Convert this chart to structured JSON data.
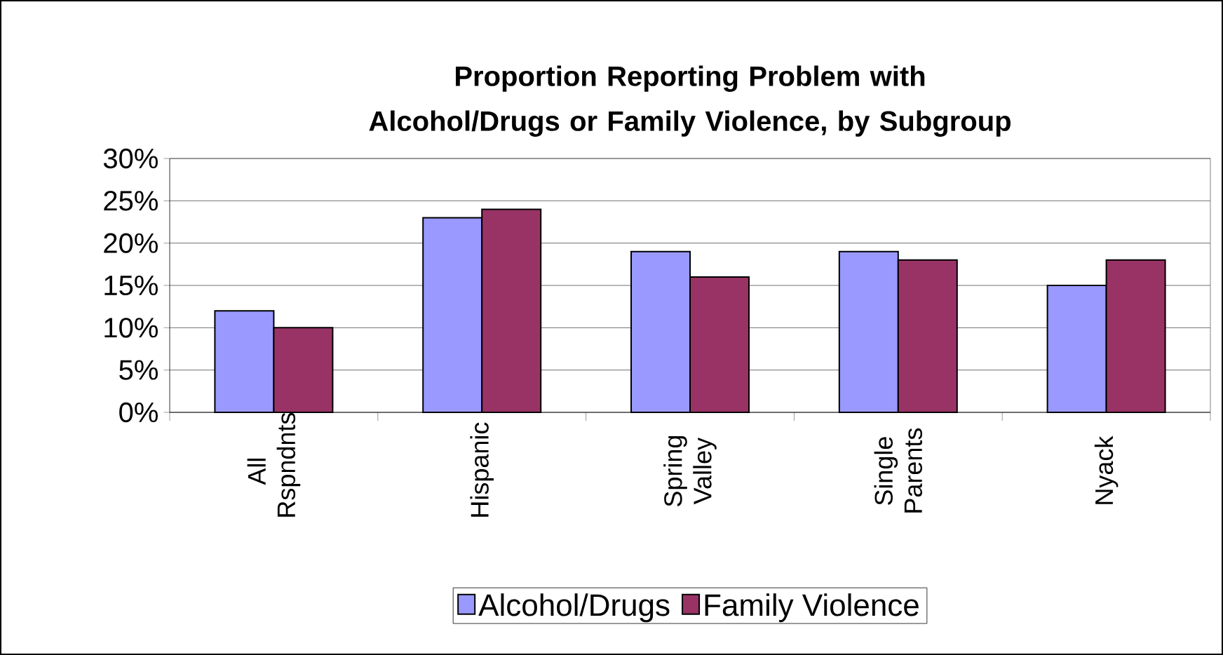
{
  "chart_data": {
    "type": "bar",
    "title": "Proportion Reporting Problem with Alcohol/Drugs or Family Violence, by Subgroup",
    "categories": [
      "All Rspndnts",
      "Hispanic",
      "Spring Valley",
      "Single Parents",
      "Nyack"
    ],
    "series": [
      {
        "name": "Alcohol/Drugs",
        "color": "#9999ff",
        "values": [
          12,
          23,
          19,
          19,
          15
        ]
      },
      {
        "name": "Family Violence",
        "color": "#993366",
        "values": [
          10,
          24,
          16,
          18,
          18
        ]
      }
    ],
    "ylim": [
      0,
      30
    ],
    "yticks": [
      {
        "value": 0,
        "label": "0%"
      },
      {
        "value": 5,
        "label": "5%"
      },
      {
        "value": 10,
        "label": "10%"
      },
      {
        "value": 15,
        "label": "15%"
      },
      {
        "value": 20,
        "label": "20%"
      },
      {
        "value": 25,
        "label": "25%"
      },
      {
        "value": 30,
        "label": "30%"
      }
    ],
    "grid": "y",
    "legend": "bottom"
  }
}
